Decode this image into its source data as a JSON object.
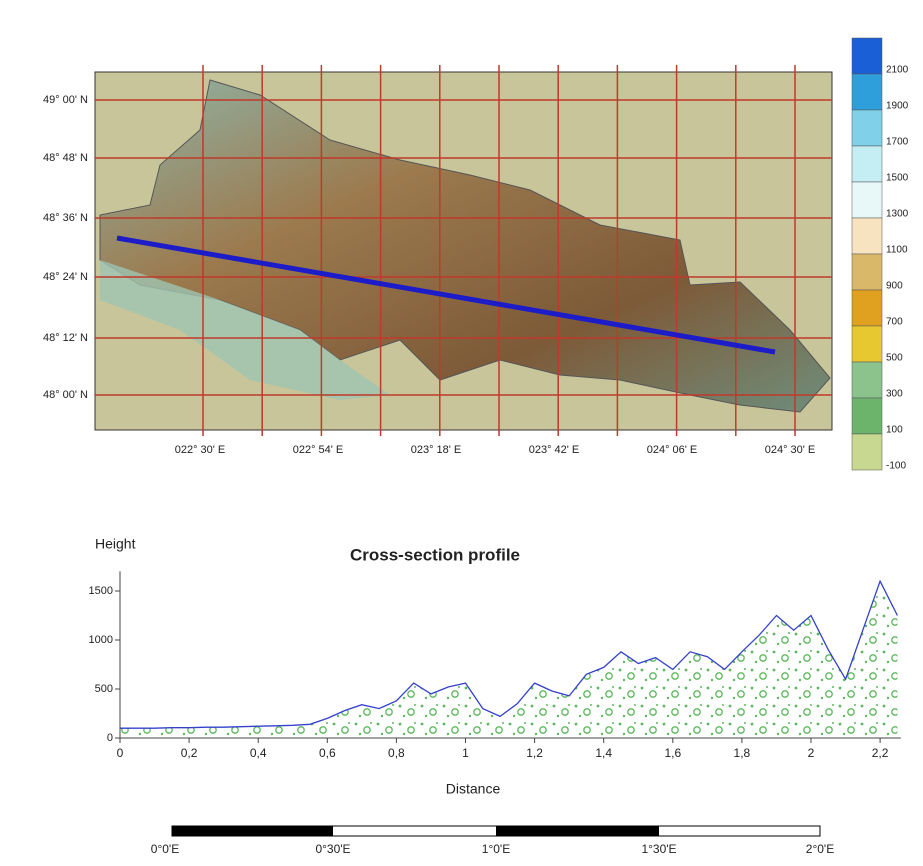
{
  "map": {
    "lat_labels": [
      "49° 00' N",
      "48° 48' N",
      "48° 36' N",
      "48° 24' N",
      "48° 12' N",
      "48° 00' N"
    ],
    "lon_labels": [
      "022° 30' E",
      "022° 54' E",
      "023° 18' E",
      "023° 42' E",
      "024° 06' E",
      "024° 30' E"
    ],
    "colorbar_labels": [
      "2100",
      "1900",
      "1700",
      "1500",
      "1300",
      "1100",
      "900",
      "700",
      "500",
      "300",
      "100",
      "-100"
    ],
    "colorbar_colors": [
      "#1a5fd6",
      "#2f9fdc",
      "#7fd0e8",
      "#c4eef4",
      "#e8f8f8",
      "#f8e3c0",
      "#d9b86a",
      "#e0a020",
      "#e8c830",
      "#8cc28c",
      "#6cb46c",
      "#c8d890"
    ]
  },
  "chart_data": {
    "type": "area",
    "title": "Cross-section profile",
    "y_label": "Height",
    "x_label": "Distance",
    "x": [
      0,
      0.05,
      0.1,
      0.15,
      0.2,
      0.25,
      0.3,
      0.35,
      0.4,
      0.45,
      0.5,
      0.55,
      0.6,
      0.65,
      0.7,
      0.75,
      0.8,
      0.85,
      0.9,
      0.95,
      1.0,
      1.05,
      1.1,
      1.15,
      1.2,
      1.25,
      1.3,
      1.35,
      1.4,
      1.45,
      1.5,
      1.55,
      1.6,
      1.65,
      1.7,
      1.75,
      1.8,
      1.85,
      1.9,
      1.95,
      2.0,
      2.05,
      2.1,
      2.15,
      2.2,
      2.25
    ],
    "series": [
      {
        "name": "Height",
        "color": "#3340cc",
        "values": [
          100,
          100,
          100,
          105,
          105,
          110,
          110,
          115,
          120,
          125,
          130,
          140,
          200,
          280,
          340,
          300,
          380,
          560,
          450,
          520,
          560,
          300,
          220,
          350,
          560,
          480,
          430,
          650,
          720,
          880,
          760,
          820,
          700,
          880,
          830,
          700,
          880,
          1050,
          1250,
          1100,
          1250,
          900,
          600,
          1100,
          1600,
          1250
        ]
      }
    ],
    "xlim": [
      0,
      2.26
    ],
    "ylim": [
      0,
      1700
    ],
    "xticks": [
      0,
      {
        "value": 0.2,
        "label": "0,2"
      },
      {
        "value": 0.4,
        "label": "0,4"
      },
      {
        "value": 0.6,
        "label": "0,6"
      },
      {
        "value": 0.8,
        "label": "0,8"
      },
      1,
      {
        "value": 1.2,
        "label": "1,2"
      },
      {
        "value": 1.4,
        "label": "1,4"
      },
      {
        "value": 1.6,
        "label": "1,6"
      },
      {
        "value": 1.8,
        "label": "1,8"
      },
      2,
      {
        "value": 2.2,
        "label": "2,2"
      }
    ],
    "yticks": [
      0,
      500,
      1000,
      1500
    ]
  },
  "scale_bar": {
    "labels": [
      "0°0'E",
      "0°30'E",
      "1°0'E",
      "1°30'E",
      "2°0'E"
    ]
  }
}
